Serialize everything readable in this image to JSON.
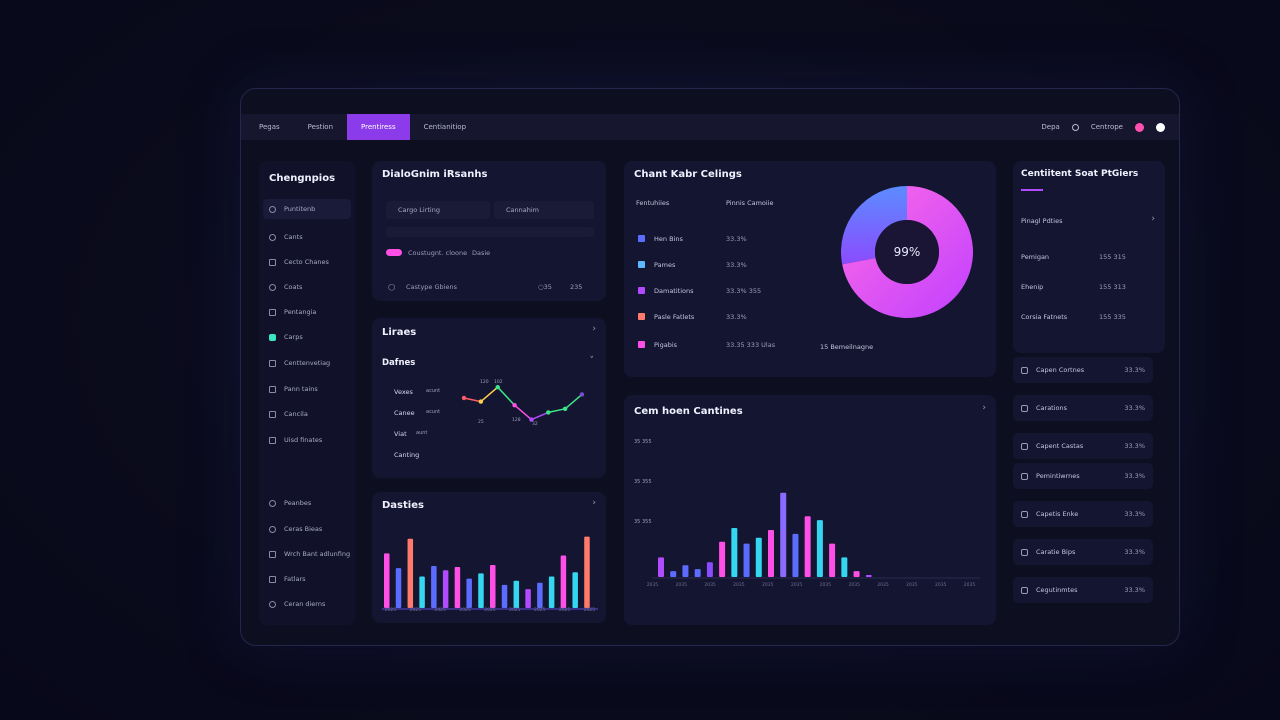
{
  "colors": {
    "accent": "#8b3bea",
    "pink": "#ff4fe6",
    "blue": "#5b6cff",
    "cyan": "#34d6f0",
    "green": "#3be688",
    "red": "#ff7a6a"
  },
  "topbar": {
    "tabs": [
      {
        "label": "Pegas"
      },
      {
        "label": "Pestion"
      },
      {
        "label": "Prentiress",
        "active": true
      },
      {
        "label": "Centianitiop"
      }
    ],
    "right": {
      "label1": "Depa",
      "label2": "Centrope"
    }
  },
  "sidebar": {
    "title": "Chengnpios",
    "items": [
      {
        "label": "Puntitenb",
        "icon": "circle-icon",
        "selected": true
      },
      {
        "label": "Cants",
        "icon": "circle-icon"
      },
      {
        "label": "Cecto Chanes",
        "icon": "square-icon"
      },
      {
        "label": "Coats",
        "icon": "circle-icon"
      },
      {
        "label": "Pentangia",
        "icon": "shield-icon"
      },
      {
        "label": "Carps",
        "icon": "teal-icon"
      },
      {
        "label": "Centtenvetiag",
        "icon": "shield-icon"
      },
      {
        "label": "Pann tains",
        "icon": "square-icon"
      },
      {
        "label": "Cancila",
        "icon": "shield-icon"
      },
      {
        "label": "Uisd finates",
        "icon": "shield-icon"
      }
    ],
    "bottom_items": [
      {
        "label": "Peanbes",
        "icon": "user-icon"
      },
      {
        "label": "Ceras Bieas",
        "icon": "circle-icon"
      },
      {
        "label": "Wrch Bant adlunfing",
        "icon": "shield-icon"
      },
      {
        "label": "Fatlars",
        "icon": "square-icon"
      },
      {
        "label": "Ceran dierns",
        "icon": "circle-icon"
      }
    ]
  },
  "card_dialog": {
    "title": "DialoGnim iRsanhs",
    "fields": [
      "Cargo Lirting",
      "Cannahim"
    ],
    "toggle_label": "Coustugnt. cloone",
    "toggle_value": "Dasie",
    "row_label": "Castype Gbiens",
    "row_val1": "○35",
    "row_val2": "235"
  },
  "card_lines": {
    "title": "Liraes",
    "subtitle": "Dafnes",
    "labels": [
      "Vexes",
      "Canee",
      "Viat",
      "Canting"
    ],
    "sublabels": [
      "acunt",
      "acunt",
      "aunt"
    ],
    "point_labels": [
      "120",
      "102",
      "25",
      "128",
      "32"
    ]
  },
  "card_dasties": {
    "title": "Dasties",
    "ticks": [
      "2025",
      "2025",
      "2025",
      "2025",
      "2025",
      "2025",
      "2025",
      "2025",
      "2025"
    ]
  },
  "card_chart": {
    "title": "Chant Kabr Celings",
    "col1": "Fentuhiies",
    "col2": "Pinnis Camoiie",
    "legend": [
      {
        "label": "Hen Bins",
        "value": "33.3%",
        "color": "#5b6cff"
      },
      {
        "label": "Pames",
        "value": "33.3%",
        "color": "#5bb9ff"
      },
      {
        "label": "Damatitions",
        "value": "33.3% 355",
        "color": "#b04bff"
      },
      {
        "label": "Pasle Fatlets",
        "value": "33.3%",
        "color": "#ff7a6a"
      },
      {
        "label": "Pigabis",
        "value": "33.35 333 Ulas",
        "color": "#ff4fe6"
      }
    ],
    "donut_label": "99%",
    "donut_value": 0.99,
    "footer": "15 Bemeilnagne"
  },
  "card_cam": {
    "title": "Cem hoen Cantines",
    "ylabels": [
      "35 355",
      "35 355",
      "35 355"
    ],
    "xticks": [
      "2035",
      "2035",
      "2035",
      "2035",
      "2035",
      "2035",
      "2035",
      "2035",
      "2035",
      "2035",
      "2035",
      "2035"
    ]
  },
  "right_panel": {
    "title": "Centiitent Soat PtGiers",
    "header_row": "Pinagl Pdties",
    "rows": [
      {
        "label": "Pemigan",
        "value": "155 315"
      },
      {
        "label": "Ehenip",
        "value": "155 313"
      },
      {
        "label": "Corsia Fatnets",
        "value": "155 335"
      }
    ],
    "list": [
      {
        "label": "Capen Cortnes",
        "value": "33.3%"
      },
      {
        "label": "Carations",
        "value": "33.3%"
      },
      {
        "label": "Capent Castas",
        "value": "33.3%"
      },
      {
        "label": "Pemintiwrnes",
        "value": "33.3%"
      },
      {
        "label": "Capetis Enke",
        "value": "33.3%"
      },
      {
        "label": "Caratie Bips",
        "value": "33.3%"
      },
      {
        "label": "Cegutinmtes",
        "value": "33.3%"
      }
    ]
  },
  "chart_data": [
    {
      "type": "line",
      "x": [
        1,
        2,
        3,
        4,
        5,
        6,
        7,
        8
      ],
      "series": [
        {
          "values": [
            20,
            18,
            26,
            16,
            8,
            12,
            14,
            22
          ]
        }
      ]
    },
    {
      "type": "bar",
      "values": [
        52,
        38,
        66,
        30,
        40,
        36,
        39,
        28,
        33,
        41,
        22,
        26,
        18,
        24,
        30,
        50,
        34,
        68
      ],
      "ylim": [
        0,
        80
      ]
    },
    {
      "type": "pie",
      "values": [
        28,
        72
      ]
    },
    {
      "type": "bar",
      "values": [
        20,
        6,
        12,
        8,
        15,
        36,
        50,
        34,
        40,
        48,
        86,
        44,
        62,
        58,
        34,
        20,
        6,
        2
      ],
      "ylim": [
        0,
        100
      ]
    }
  ]
}
